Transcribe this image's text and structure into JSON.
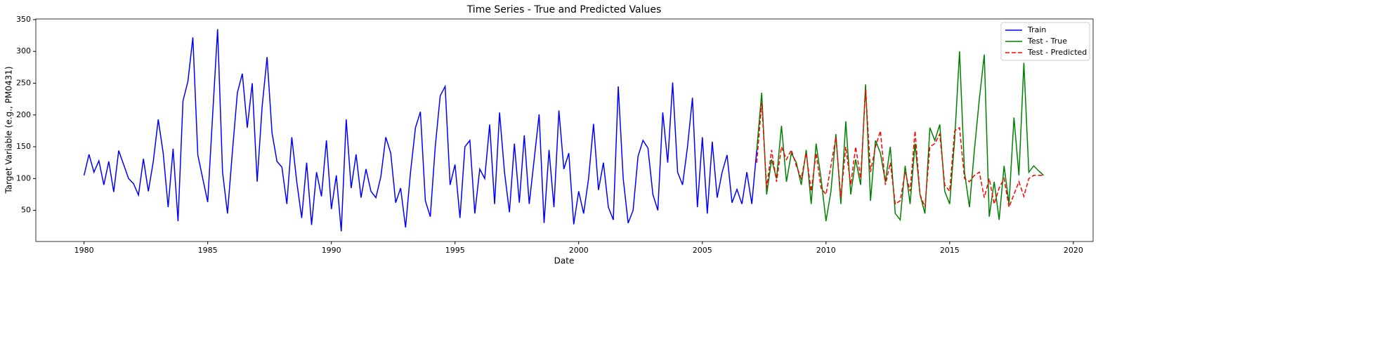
{
  "chart_data": {
    "type": "line",
    "title": "Time Series - True and Predicted Values",
    "xlabel": "Date",
    "ylabel": "Target Variable (e.g., PM0431)",
    "xlim": [
      1978.05,
      2020.8
    ],
    "xticks": [
      1980,
      1985,
      1990,
      1995,
      2000,
      2005,
      2010,
      2015,
      2020
    ],
    "ylim": [
      1,
      351
    ],
    "yticks": [
      50,
      100,
      150,
      200,
      250,
      300,
      350
    ],
    "grid": false,
    "legend": "upper right",
    "series": [
      {
        "name": "Train",
        "color": "#0000ff",
        "linestyle": "solid",
        "x": [
          1980,
          1980.2,
          1980.4,
          1980.6,
          1980.8,
          1981,
          1981.2,
          1981.4,
          1981.6,
          1981.8,
          1982,
          1982.2,
          1982.4,
          1982.6,
          1982.8,
          1983,
          1983.2,
          1983.4,
          1983.6,
          1983.8,
          1984,
          1984.2,
          1984.4,
          1984.6,
          1984.8,
          1985,
          1985.2,
          1985.4,
          1985.6,
          1985.8,
          1986,
          1986.2,
          1986.4,
          1986.6,
          1986.8,
          1987,
          1987.2,
          1987.4,
          1987.6,
          1987.8,
          1988,
          1988.2,
          1988.4,
          1988.6,
          1988.8,
          1989,
          1989.2,
          1989.4,
          1989.6,
          1989.8,
          1990,
          1990.2,
          1990.4,
          1990.6,
          1990.8,
          1991,
          1991.2,
          1991.4,
          1991.6,
          1991.8,
          1992,
          1992.2,
          1992.4,
          1992.6,
          1992.8,
          1993,
          1993.2,
          1993.4,
          1993.6,
          1993.8,
          1994,
          1994.2,
          1994.4,
          1994.6,
          1994.8,
          1995,
          1995.2,
          1995.4,
          1995.6,
          1995.8,
          1996,
          1996.2,
          1996.4,
          1996.6,
          1996.8,
          1997,
          1997.2,
          1997.4,
          1997.6,
          1997.8,
          1998,
          1998.2,
          1998.4,
          1998.6,
          1998.8,
          1999,
          1999.2,
          1999.4,
          1999.6,
          1999.8,
          2000,
          2000.2,
          2000.4,
          2000.6,
          2000.8,
          2001,
          2001.2,
          2001.4,
          2001.6,
          2001.8,
          2002,
          2002.2,
          2002.4,
          2002.6,
          2002.8,
          2003,
          2003.2,
          2003.4,
          2003.6,
          2003.8,
          2004,
          2004.2,
          2004.4,
          2004.6,
          2004.8,
          2005,
          2005.2,
          2005.4,
          2005.6,
          2005.8,
          2006,
          2006.2,
          2006.4,
          2006.6,
          2006.8,
          2007,
          2007.2
        ],
        "values": [
          105,
          138,
          110,
          128,
          90,
          127,
          79,
          144,
          122,
          100,
          92,
          74,
          131,
          80,
          127,
          193,
          140,
          55,
          147,
          33,
          222,
          253,
          322,
          137,
          100,
          63,
          200,
          335,
          110,
          45,
          143,
          235,
          265,
          180,
          250,
          95,
          213,
          291,
          172,
          127,
          118,
          60,
          165,
          95,
          38,
          125,
          27,
          110,
          72,
          160,
          52,
          105,
          17,
          193,
          85,
          138,
          70,
          115,
          80,
          70,
          103,
          165,
          140,
          62,
          85,
          23,
          110,
          180,
          205,
          65,
          40,
          150,
          230,
          245,
          90,
          122,
          38,
          150,
          160,
          45,
          115,
          100,
          185,
          60,
          204,
          110,
          47,
          155,
          62,
          168,
          60,
          130,
          201,
          30,
          145,
          55,
          207,
          115,
          140,
          28,
          80,
          45,
          100,
          186,
          82,
          125,
          55,
          35,
          245,
          100,
          30,
          50,
          135,
          160,
          148,
          75,
          50,
          204,
          125,
          251,
          110,
          90,
          150,
          227,
          55,
          165,
          45,
          158,
          70,
          110,
          137,
          62,
          83,
          60,
          110,
          60,
          145
        ]
      },
      {
        "name": "Test - True",
        "color": "#008000",
        "linestyle": "solid",
        "x": [
          2007.2,
          2007.4,
          2007.6,
          2007.8,
          2008,
          2008.2,
          2008.4,
          2008.6,
          2008.8,
          2009,
          2009.2,
          2009.4,
          2009.6,
          2009.8,
          2010,
          2010.2,
          2010.4,
          2010.6,
          2010.8,
          2011,
          2011.2,
          2011.4,
          2011.6,
          2011.8,
          2012,
          2012.2,
          2012.4,
          2012.6,
          2012.8,
          2013,
          2013.2,
          2013.4,
          2013.6,
          2013.8,
          2014,
          2014.2,
          2014.4,
          2014.6,
          2014.8,
          2015,
          2015.2,
          2015.4,
          2015.6,
          2015.8,
          2016,
          2016.2,
          2016.4,
          2016.6,
          2016.8,
          2017,
          2017.2,
          2017.4,
          2017.6,
          2017.8,
          2018,
          2018.2,
          2018.4,
          2018.6,
          2018.8
        ],
        "values": [
          145,
          235,
          75,
          130,
          100,
          183,
          95,
          140,
          125,
          90,
          145,
          60,
          155,
          100,
          33,
          80,
          170,
          60,
          190,
          75,
          130,
          90,
          248,
          65,
          160,
          140,
          95,
          150,
          45,
          35,
          120,
          60,
          155,
          75,
          45,
          180,
          160,
          185,
          80,
          60,
          160,
          300,
          110,
          55,
          145,
          225,
          295,
          40,
          95,
          35,
          120,
          60,
          196,
          105,
          282,
          110,
          120,
          112,
          105
        ]
      },
      {
        "name": "Test - Predicted",
        "color": "#ff0000",
        "linestyle": "dashed",
        "x": [
          2007.2,
          2007.4,
          2007.6,
          2007.8,
          2008,
          2008.2,
          2008.4,
          2008.6,
          2008.8,
          2009,
          2009.2,
          2009.4,
          2009.6,
          2009.8,
          2010,
          2010.2,
          2010.4,
          2010.6,
          2010.8,
          2011,
          2011.2,
          2011.4,
          2011.6,
          2011.8,
          2012,
          2012.2,
          2012.4,
          2012.6,
          2012.8,
          2013,
          2013.2,
          2013.4,
          2013.6,
          2013.8,
          2014,
          2014.2,
          2014.4,
          2014.6,
          2014.8,
          2015,
          2015.2,
          2015.4,
          2015.6,
          2015.8,
          2016,
          2016.2,
          2016.4,
          2016.6,
          2016.8,
          2017,
          2017.2,
          2017.4,
          2017.6,
          2017.8,
          2018,
          2018.2,
          2018.4,
          2018.6,
          2018.8
        ],
        "values": [
          125,
          220,
          85,
          145,
          95,
          150,
          130,
          145,
          120,
          100,
          140,
          80,
          140,
          85,
          75,
          120,
          165,
          70,
          150,
          90,
          150,
          100,
          240,
          110,
          150,
          175,
          90,
          125,
          60,
          65,
          110,
          80,
          175,
          75,
          55,
          150,
          155,
          170,
          90,
          80,
          175,
          180,
          100,
          95,
          105,
          110,
          70,
          100,
          60,
          85,
          100,
          55,
          75,
          95,
          72,
          100,
          105,
          105,
          105
        ]
      }
    ]
  }
}
